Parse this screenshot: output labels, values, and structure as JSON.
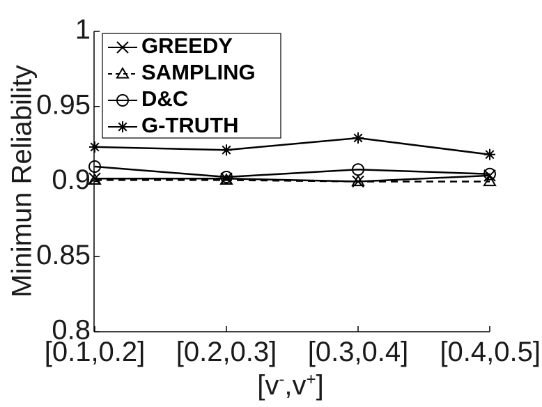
{
  "chart_data": {
    "type": "line",
    "title": "",
    "xlabel": "[v-,v+]",
    "ylabel": "Minimun Reliability",
    "categories": [
      "[0.1,0.2]",
      "[0.2,0.3]",
      "[0.3,0.4]",
      "[0.4,0.5]"
    ],
    "ylim": [
      0.8,
      1
    ],
    "yticks": [
      "0.8",
      "0.85",
      "0.9",
      "0.95",
      "1"
    ],
    "grid": false,
    "legend_position": "top-left",
    "series": [
      {
        "name": "GREEDY",
        "marker": "x",
        "dash": "solid",
        "color": "#000000",
        "values": [
          0.902,
          0.902,
          0.9,
          0.904
        ]
      },
      {
        "name": "SAMPLING",
        "marker": "triangle",
        "dash": "dashed",
        "color": "#000000",
        "values": [
          0.901,
          0.901,
          0.9,
          0.9
        ]
      },
      {
        "name": "D&C",
        "marker": "circle",
        "dash": "solid",
        "color": "#000000",
        "values": [
          0.91,
          0.903,
          0.908,
          0.905
        ]
      },
      {
        "name": "G-TRUTH",
        "marker": "star",
        "dash": "solid",
        "color": "#000000",
        "values": [
          0.923,
          0.921,
          0.929,
          0.918
        ]
      }
    ]
  }
}
